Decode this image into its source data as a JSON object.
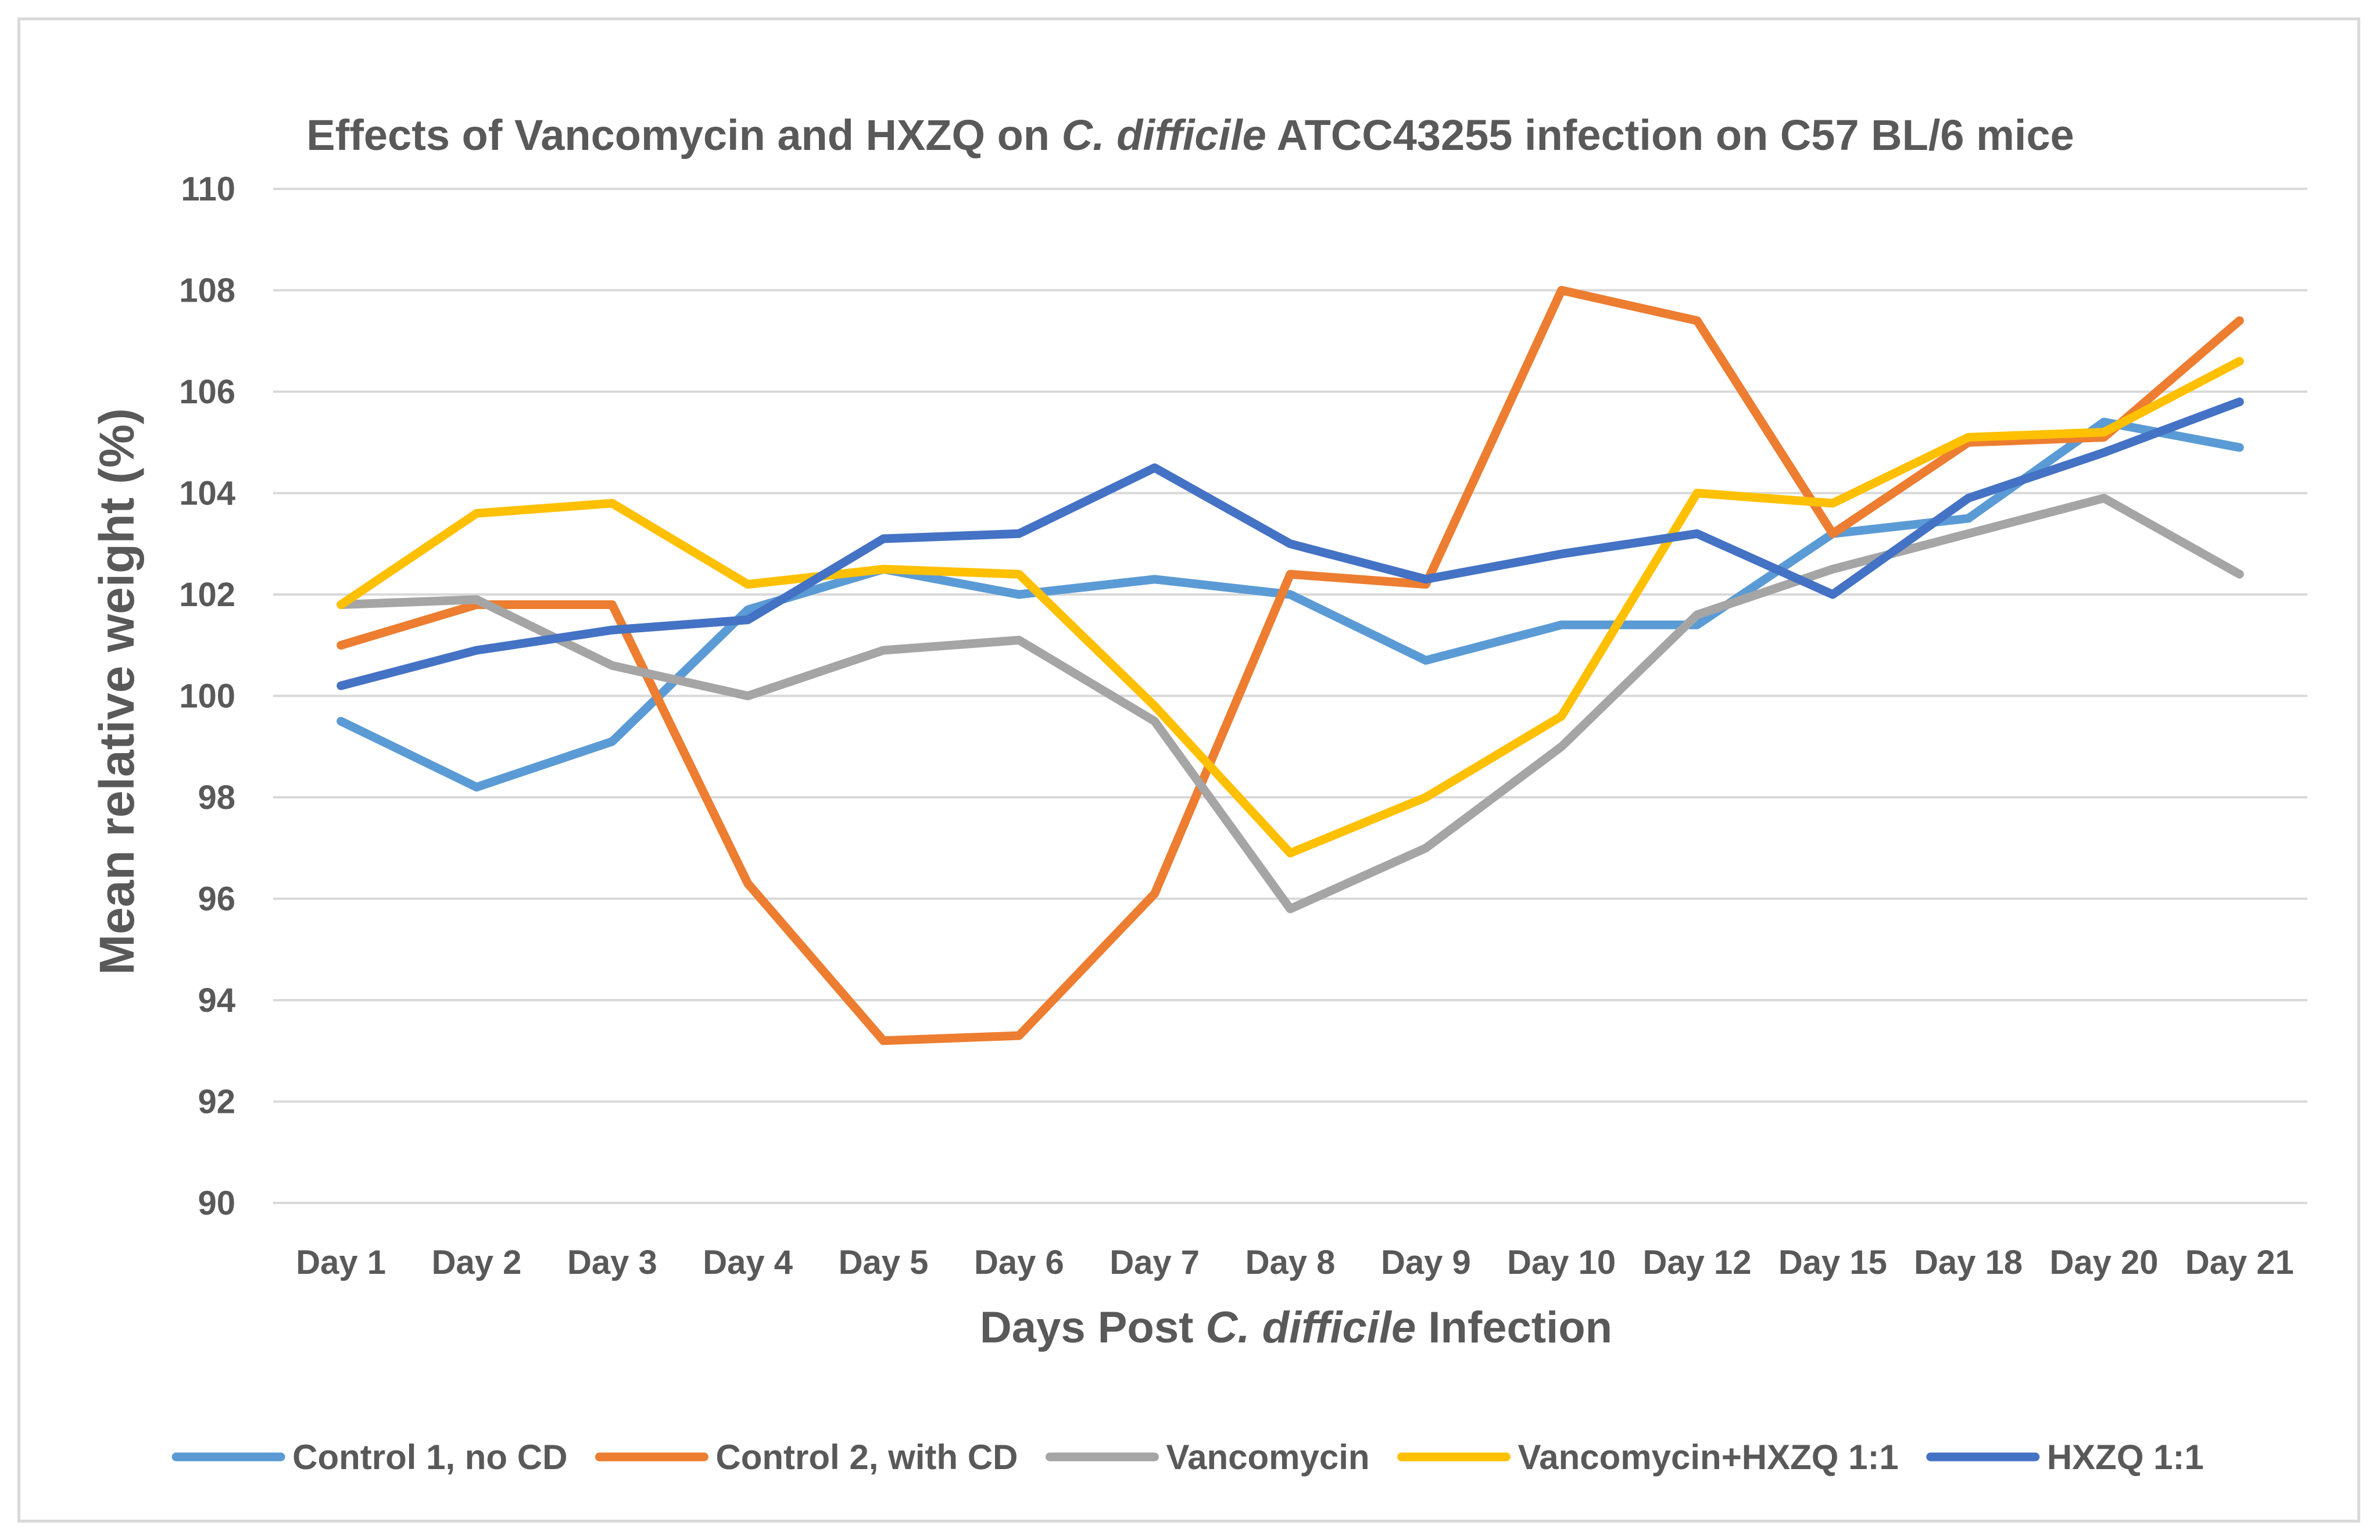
{
  "chart_data": {
    "type": "line",
    "title_parts": [
      {
        "text": "Effects of Vancomycin and HXZQ on ",
        "italic": false
      },
      {
        "text": "C. difficile",
        "italic": true
      },
      {
        "text": " ATCC43255 infection on C57 BL/6 mice",
        "italic": false
      }
    ],
    "xlabel_parts": [
      {
        "text": "Days Post ",
        "italic": false
      },
      {
        "text": "C. difficile",
        "italic": true
      },
      {
        "text": " Infection",
        "italic": false
      }
    ],
    "ylabel": "Mean relative weight (%)",
    "ylim": [
      90,
      110
    ],
    "ytick_step": 2,
    "grid": true,
    "legend_position": "bottom",
    "categories": [
      "Day 1",
      "Day 2",
      "Day 3",
      "Day 4",
      "Day 5",
      "Day 6",
      "Day 7",
      "Day 8",
      "Day 9",
      "Day 10",
      "Day 12",
      "Day 15",
      "Day 18",
      "Day 20",
      "Day 21"
    ],
    "series": [
      {
        "name": "Control 1, no CD",
        "color": "#5b9bd5",
        "values": [
          99.5,
          98.2,
          99.1,
          101.7,
          102.5,
          102.0,
          102.3,
          102.0,
          100.7,
          101.4,
          101.4,
          103.2,
          103.5,
          105.4,
          104.9
        ]
      },
      {
        "name": "Control 2, with CD",
        "color": "#ed7d31",
        "values": [
          101.0,
          101.8,
          101.8,
          96.3,
          93.2,
          93.3,
          96.1,
          102.4,
          102.2,
          108.0,
          107.4,
          103.2,
          105.0,
          105.1,
          107.4
        ]
      },
      {
        "name": "Vancomycin",
        "color": "#a5a5a5",
        "values": [
          101.8,
          101.9,
          100.6,
          100.0,
          100.9,
          101.1,
          99.5,
          95.8,
          97.0,
          99.0,
          101.6,
          102.5,
          103.2,
          103.9,
          102.4
        ]
      },
      {
        "name": "Vancomycin+HXZQ 1:1",
        "color": "#ffc000",
        "values": [
          101.8,
          103.6,
          103.8,
          102.2,
          102.5,
          102.4,
          99.8,
          96.9,
          98.0,
          99.6,
          104.0,
          103.8,
          105.1,
          105.2,
          106.6
        ]
      },
      {
        "name": "HXZQ 1:1",
        "color": "#4472c4",
        "values": [
          100.2,
          100.9,
          101.3,
          101.5,
          103.1,
          103.2,
          104.5,
          103.0,
          102.3,
          102.8,
          103.2,
          102.0,
          103.9,
          104.8,
          105.8
        ]
      }
    ]
  }
}
